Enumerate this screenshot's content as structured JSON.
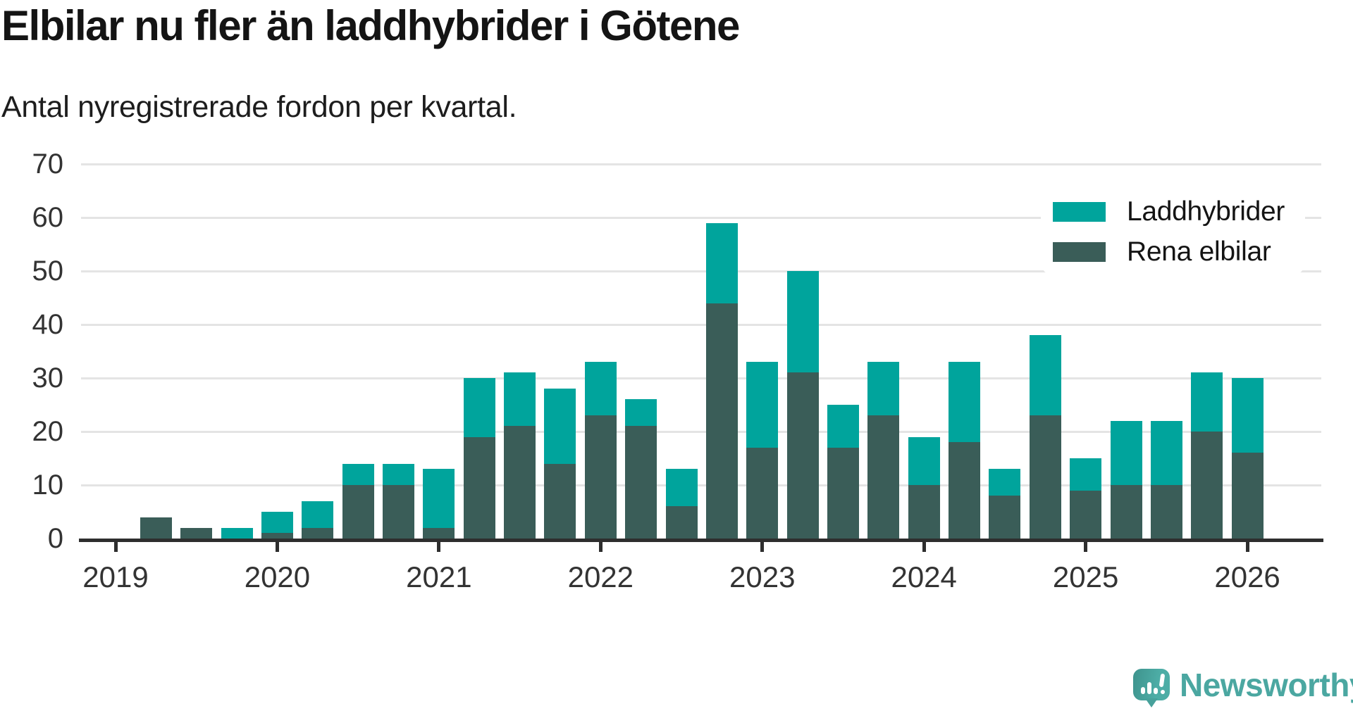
{
  "title": "Elbilar nu fler än laddhybrider i Götene",
  "subtitle": "Antal nyregistrerade fordon per kvartal.",
  "legend": {
    "items": [
      {
        "label": "Laddhybrider",
        "color": "#00a49c"
      },
      {
        "label": "Rena elbilar",
        "color": "#3a5d58"
      }
    ]
  },
  "y_axis": {
    "ticks": [
      0,
      10,
      20,
      30,
      40,
      50,
      60,
      70
    ]
  },
  "x_axis": {
    "year_labels": [
      "2019",
      "2020",
      "2021",
      "2022",
      "2023",
      "2024",
      "2025",
      "2026"
    ]
  },
  "chart_data": {
    "type": "bar",
    "stacked": true,
    "title": "Elbilar nu fler än laddhybrider i Götene",
    "subtitle": "Antal nyregistrerade fordon per kvartal.",
    "ylabel": "Antal nyregistrerade fordon",
    "ylim": [
      0,
      70
    ],
    "grid": "horizontal",
    "legend_position": "top-right",
    "categories": [
      "2019 Q1",
      "2019 Q2",
      "2019 Q3",
      "2019 Q4",
      "2020 Q1",
      "2020 Q2",
      "2020 Q3",
      "2020 Q4",
      "2021 Q1",
      "2021 Q2",
      "2021 Q3",
      "2021 Q4",
      "2022 Q1",
      "2022 Q2",
      "2022 Q3",
      "2022 Q4",
      "2023 Q1",
      "2023 Q2",
      "2023 Q3",
      "2023 Q4",
      "2024 Q1",
      "2024 Q2",
      "2024 Q3",
      "2024 Q4",
      "2025 Q1",
      "2025 Q2",
      "2025 Q3",
      "2025 Q4",
      "2026 Q1"
    ],
    "series": [
      {
        "name": "Laddhybrider",
        "color": "#00a49c",
        "stack_order": "top",
        "values": [
          0,
          0,
          0,
          2,
          4,
          5,
          4,
          4,
          11,
          11,
          10,
          14,
          10,
          5,
          7,
          15,
          16,
          19,
          8,
          10,
          9,
          15,
          5,
          15,
          6,
          12,
          12,
          11,
          14
        ]
      },
      {
        "name": "Rena elbilar",
        "color": "#3a5d58",
        "stack_order": "bottom",
        "values": [
          0,
          4,
          2,
          0,
          1,
          2,
          10,
          10,
          2,
          19,
          21,
          14,
          23,
          21,
          6,
          44,
          17,
          31,
          17,
          23,
          10,
          18,
          8,
          23,
          9,
          10,
          10,
          20,
          16
        ]
      }
    ],
    "totals": [
      0,
      4,
      2,
      2,
      5,
      7,
      14,
      14,
      13,
      30,
      31,
      28,
      33,
      26,
      13,
      59,
      33,
      50,
      25,
      33,
      19,
      33,
      13,
      38,
      15,
      22,
      22,
      31,
      30
    ]
  },
  "colors": {
    "laddhybrider": "#00a49c",
    "rena_elbilar": "#3a5d58",
    "gridline": "#e4e4e4",
    "axis": "#2e2e2e",
    "logo": "#4ba7a1"
  },
  "branding": {
    "logo_text": "Newsworthy"
  }
}
